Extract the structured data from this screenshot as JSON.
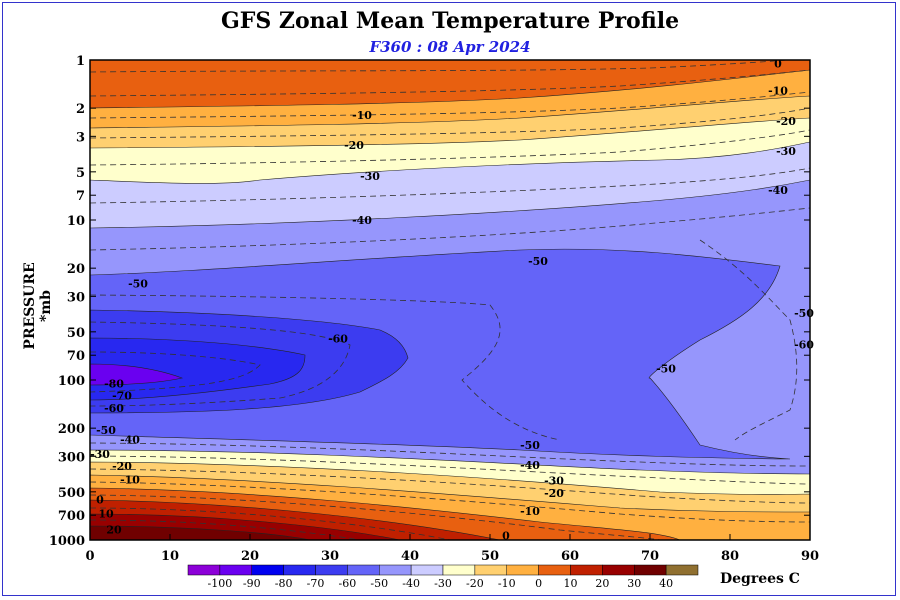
{
  "chart_data": {
    "type": "heatmap",
    "title": "GFS Zonal Mean Temperature Profile",
    "subtitle": "F360 : 08 Apr 2024",
    "ylabel": "PRESSURE *mb",
    "units": "Degrees C",
    "x_ticks": [
      0,
      10,
      20,
      30,
      40,
      50,
      60,
      70,
      80,
      90
    ],
    "y_ticks": [
      1,
      2,
      3,
      5,
      7,
      10,
      20,
      30,
      50,
      70,
      100,
      200,
      300,
      500,
      700,
      1000
    ],
    "xlim": [
      0,
      90
    ],
    "ylim": [
      1000,
      1
    ],
    "y_scale": "log",
    "colorbar_levels": [
      -100,
      -90,
      -80,
      -70,
      -60,
      -50,
      -40,
      -30,
      -20,
      -10,
      0,
      10,
      20,
      30,
      40
    ],
    "colorbar_colors": [
      "#8c00d8",
      "#6a00f0",
      "#0000f0",
      "#2828f0",
      "#3c3cf0",
      "#6464f8",
      "#9696fc",
      "#ccccff",
      "#ffffcc",
      "#ffd070",
      "#ffb040",
      "#e86010",
      "#c02000",
      "#980000",
      "#700000",
      "#907030"
    ],
    "contour_labels": [
      {
        "text": "0",
        "x": 86,
        "p": 1.05
      },
      {
        "text": "-10",
        "x": 86,
        "p": 1.55
      },
      {
        "text": "-20",
        "x": 87,
        "p": 2.4
      },
      {
        "text": "-30",
        "x": 87,
        "p": 3.7
      },
      {
        "text": "-40",
        "x": 86,
        "p": 6.5
      },
      {
        "text": "-10",
        "x": 34,
        "p": 2.2
      },
      {
        "text": "-20",
        "x": 33,
        "p": 3.4
      },
      {
        "text": "-30",
        "x": 35,
        "p": 5.3
      },
      {
        "text": "-40",
        "x": 34,
        "p": 10
      },
      {
        "text": "-50",
        "x": 56,
        "p": 18
      },
      {
        "text": "-50",
        "x": 6,
        "p": 25
      },
      {
        "text": "-60",
        "x": 31,
        "p": 55
      },
      {
        "text": "-80",
        "x": 3,
        "p": 105
      },
      {
        "text": "-70",
        "x": 4,
        "p": 125
      },
      {
        "text": "-60",
        "x": 3,
        "p": 150
      },
      {
        "text": "-50",
        "x": 2,
        "p": 205
      },
      {
        "text": "-40",
        "x": 5,
        "p": 235
      },
      {
        "text": "-30",
        "x": 0,
        "p": 290
      },
      {
        "text": "-20",
        "x": 4,
        "p": 345
      },
      {
        "text": "-10",
        "x": 5,
        "p": 420
      },
      {
        "text": "0",
        "x": 1,
        "p": 560
      },
      {
        "text": "10",
        "x": 2,
        "p": 685
      },
      {
        "text": "20",
        "x": 3,
        "p": 860
      },
      {
        "text": "-50",
        "x": 55,
        "p": 255
      },
      {
        "text": "-40",
        "x": 55,
        "p": 340
      },
      {
        "text": "-30",
        "x": 58,
        "p": 425
      },
      {
        "text": "-20",
        "x": 58,
        "p": 510
      },
      {
        "text": "-10",
        "x": 55,
        "p": 660
      },
      {
        "text": "0",
        "x": 52,
        "p": 940
      },
      {
        "text": "-50",
        "x": 72,
        "p": 85
      },
      {
        "text": "-50",
        "x": 90,
        "p": 38
      },
      {
        "text": "-60",
        "x": 90,
        "p": 60
      }
    ]
  }
}
